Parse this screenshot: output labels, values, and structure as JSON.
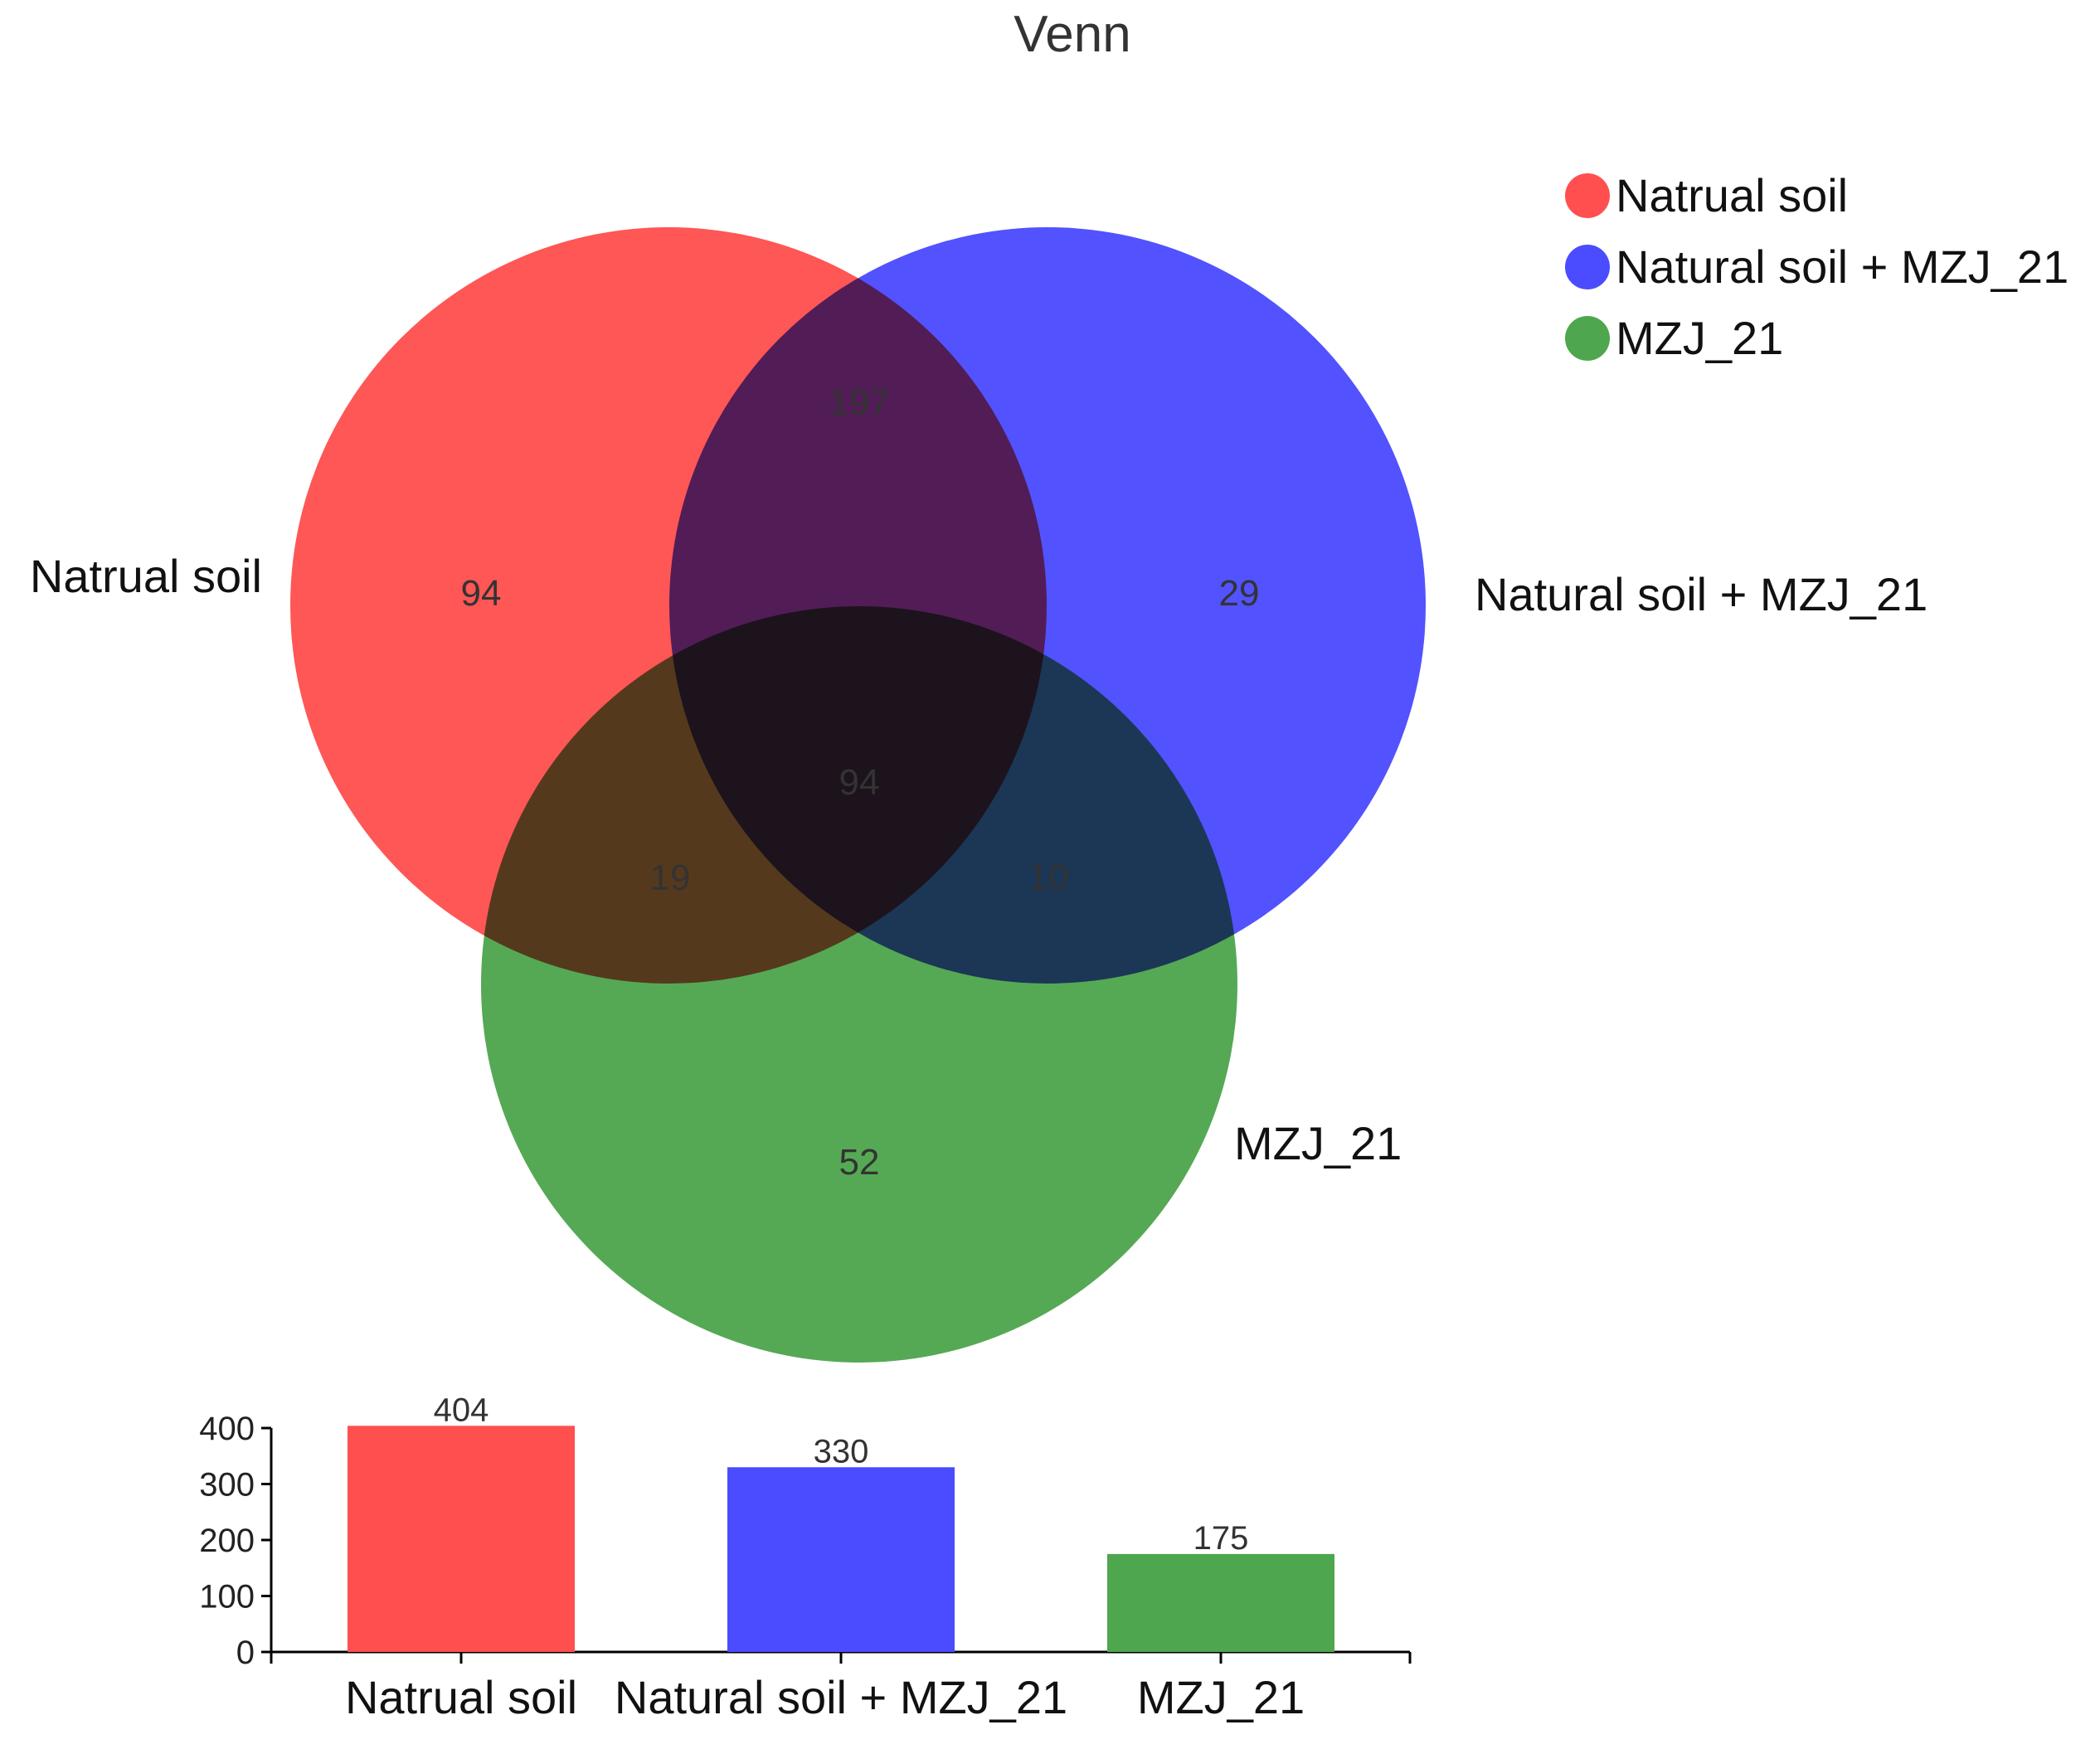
{
  "chart_data": [
    {
      "type": "venn",
      "title": "Venn",
      "sets": [
        {
          "name": "Natrual soil",
          "color": "#ff4f4f"
        },
        {
          "name": "Natural soil + MZJ_21",
          "color": "#4b4bff"
        },
        {
          "name": "MZJ_21",
          "color": "#4ea64e"
        }
      ],
      "regions": [
        {
          "sets": [
            "Natrual soil"
          ],
          "value": 94
        },
        {
          "sets": [
            "Natural soil + MZJ_21"
          ],
          "value": 29
        },
        {
          "sets": [
            "MZJ_21"
          ],
          "value": 52
        },
        {
          "sets": [
            "Natrual soil",
            "Natural soil + MZJ_21"
          ],
          "value": 197
        },
        {
          "sets": [
            "Natrual soil",
            "MZJ_21"
          ],
          "value": 19
        },
        {
          "sets": [
            "Natural soil + MZJ_21",
            "MZJ_21"
          ],
          "value": 10
        },
        {
          "sets": [
            "Natrual soil",
            "Natural soil + MZJ_21",
            "MZJ_21"
          ],
          "value": 94
        }
      ],
      "legend": {
        "position": "top-right"
      }
    },
    {
      "type": "bar",
      "categories": [
        "Natrual soil",
        "Natural soil + MZJ_21",
        "MZJ_21"
      ],
      "values": [
        404,
        330,
        175
      ],
      "colors": [
        "#ff4f4f",
        "#4b4bff",
        "#4ea64e"
      ],
      "ylim": [
        0,
        400
      ],
      "yticks": [
        0,
        100,
        200,
        300,
        400
      ],
      "grid": false
    }
  ]
}
